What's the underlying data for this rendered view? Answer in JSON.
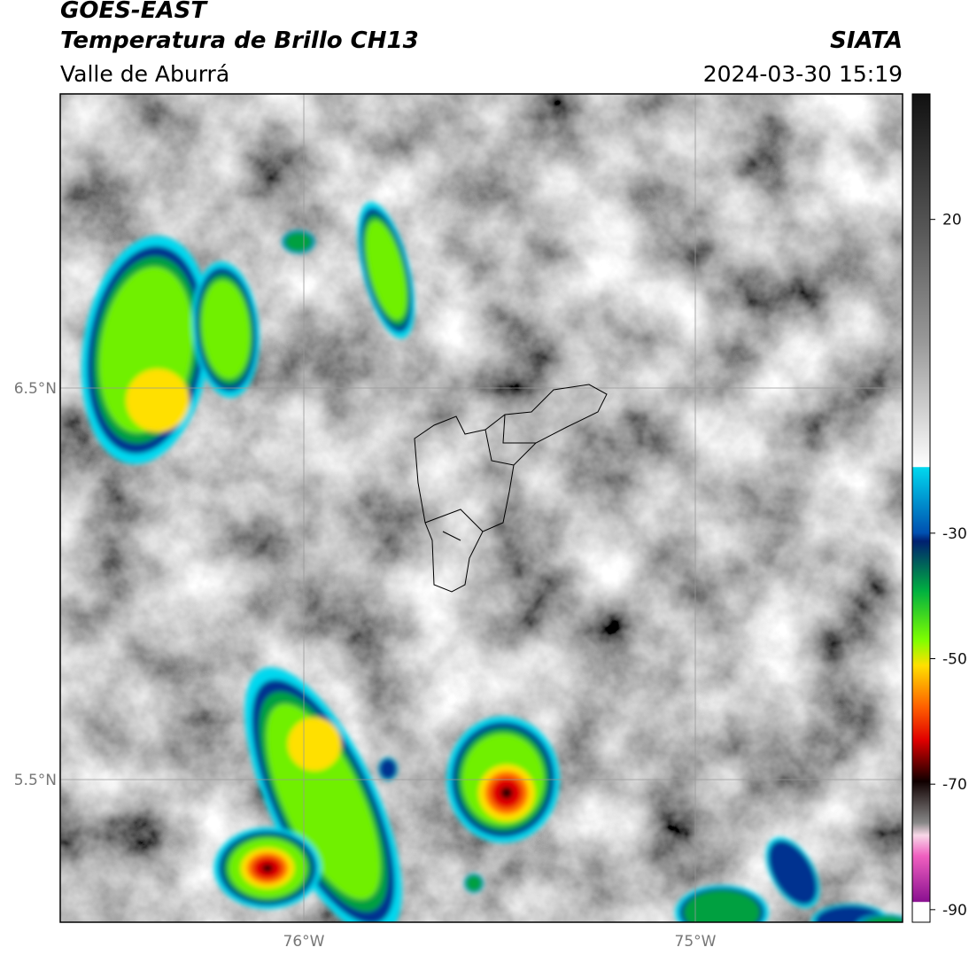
{
  "header": {
    "title": "GOES-EAST",
    "subtitle": "Temperatura de Brillo CH13",
    "region": "Valle de Aburrá",
    "source": "SIATA",
    "datetime": "2024-03-30 15:19"
  },
  "map": {
    "lon_labels": [
      "76°W",
      "75°W"
    ],
    "lat_labels": [
      "6.5°N",
      "5.5°N"
    ]
  },
  "colorbar": {
    "lim": [
      -92,
      40
    ],
    "ticks": [
      20,
      -30,
      -50,
      -70,
      -90
    ]
  }
}
